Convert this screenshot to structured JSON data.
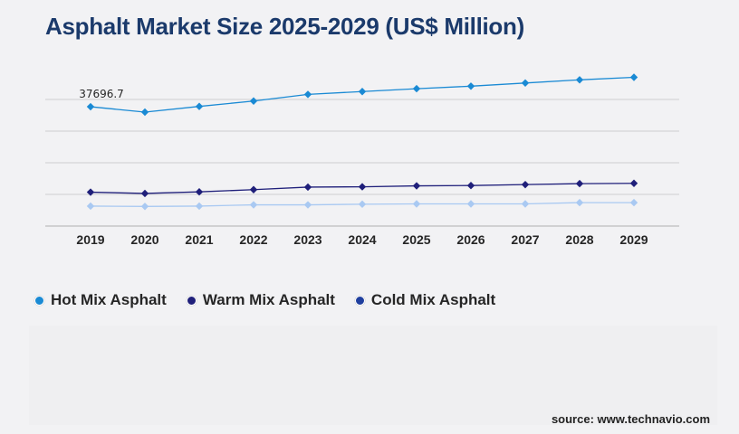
{
  "chart_data": {
    "type": "line",
    "title": "Asphalt Market Size 2025-2029 (US$ Million)",
    "x": [
      "2019",
      "2020",
      "2021",
      "2022",
      "2023",
      "2024",
      "2025",
      "2026",
      "2027",
      "2028",
      "2029"
    ],
    "ylim": [
      0,
      50000
    ],
    "grid": true,
    "legend_position": "bottom-left",
    "series": [
      {
        "name": "Hot Mix Asphalt",
        "color": "#1a8ad4",
        "values": [
          37696.7,
          36000,
          37800,
          39500,
          41600,
          42500,
          43400,
          44200,
          45200,
          46200,
          47000
        ]
      },
      {
        "name": "Warm Mix Asphalt",
        "color": "#1f1f7a",
        "values": [
          10700,
          10300,
          10800,
          11500,
          12300,
          12400,
          12700,
          12800,
          13100,
          13400,
          13500
        ]
      },
      {
        "name": "Cold Mix Asphalt",
        "color": "#a9c9f2",
        "legend_color": "#1f3f9e",
        "values": [
          6300,
          6200,
          6300,
          6700,
          6700,
          6900,
          7000,
          7000,
          7000,
          7400,
          7400
        ]
      }
    ],
    "annotations": [
      {
        "series": 0,
        "index": 0,
        "text": "37696.7"
      }
    ]
  },
  "source": "source: www.technavio.com"
}
